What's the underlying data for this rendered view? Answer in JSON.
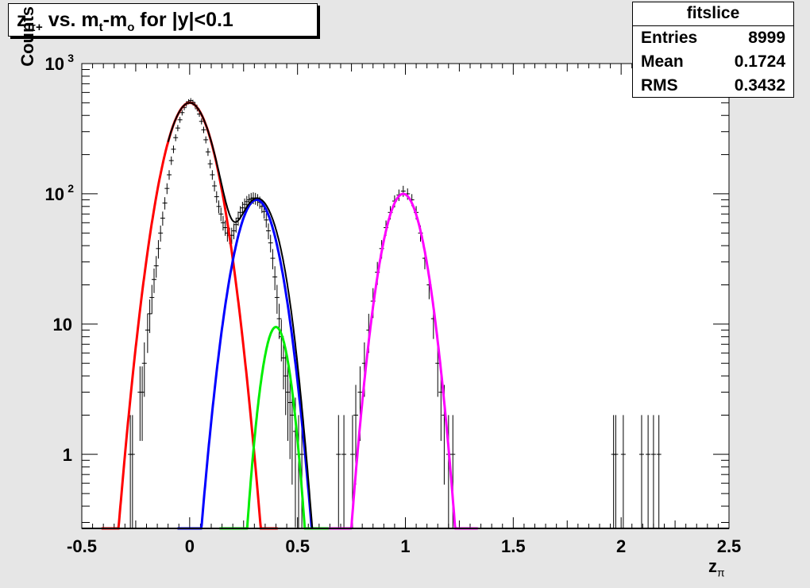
{
  "title": {
    "z": "z",
    "z_sub": "π+",
    "vs": " vs. m",
    "m_sub": "t",
    "dash": "-m",
    "o_sub": "o",
    "rest": " for |y|<0.1"
  },
  "stats": {
    "name": "fitslice",
    "rows": [
      {
        "label": "Entries",
        "value": "8999"
      },
      {
        "label": "Mean",
        "value": "0.1724"
      },
      {
        "label": "RMS",
        "value": "0.3432"
      }
    ]
  },
  "chart_data": {
    "type": "scatter",
    "title": "zπ+ vs. mt-mo for |y|<0.1",
    "xlabel": "zπ",
    "ylabel": "Counts",
    "xlim": [
      -0.5,
      2.5
    ],
    "ylim": [
      0.27,
      1000
    ],
    "yscale": "log",
    "x_ticks": [
      {
        "v": -0.5,
        "label": "-0.5"
      },
      {
        "v": 0,
        "label": "0"
      },
      {
        "v": 0.5,
        "label": "0.5"
      },
      {
        "v": 1,
        "label": "1"
      },
      {
        "v": 1.5,
        "label": "1.5"
      },
      {
        "v": 2,
        "label": "2"
      },
      {
        "v": 2.5,
        "label": "2.5"
      }
    ],
    "y_ticks": [
      {
        "v": 1,
        "label": "1"
      },
      {
        "v": 10,
        "label": "10"
      },
      {
        "v": 100,
        "label": "10",
        "sup": "2"
      },
      {
        "v": 1000,
        "label": "10",
        "sup": "3"
      }
    ],
    "series": [
      {
        "color": "#ff0000",
        "kind": "gauss",
        "amp": 500,
        "mean": 0.0,
        "sigma": 0.085
      },
      {
        "color": "#0000ff",
        "kind": "gauss",
        "amp": 90,
        "mean": 0.31,
        "sigma": 0.075
      },
      {
        "color": "#00ee00",
        "kind": "gauss",
        "amp": 9.5,
        "mean": 0.4,
        "sigma": 0.05
      },
      {
        "color": "#ff00ff",
        "kind": "gauss",
        "amp": 100,
        "mean": 0.99,
        "sigma": 0.07
      },
      {
        "color": "#000000",
        "kind": "sum",
        "components": [
          0,
          1,
          2
        ],
        "range": [
          -0.1,
          0.58
        ]
      }
    ],
    "points": [
      {
        "x": -0.275,
        "y": 1
      },
      {
        "x": -0.265,
        "y": 1
      },
      {
        "x": -0.23,
        "y": 3
      },
      {
        "x": -0.22,
        "y": 3
      },
      {
        "x": -0.21,
        "y": 5
      },
      {
        "x": -0.195,
        "y": 9
      },
      {
        "x": -0.185,
        "y": 12
      },
      {
        "x": -0.175,
        "y": 16
      },
      {
        "x": -0.165,
        "y": 22
      },
      {
        "x": -0.155,
        "y": 28
      },
      {
        "x": -0.145,
        "y": 38
      },
      {
        "x": -0.135,
        "y": 50
      },
      {
        "x": -0.125,
        "y": 65
      },
      {
        "x": -0.115,
        "y": 85
      },
      {
        "x": -0.105,
        "y": 110
      },
      {
        "x": -0.095,
        "y": 140
      },
      {
        "x": -0.085,
        "y": 180
      },
      {
        "x": -0.075,
        "y": 220
      },
      {
        "x": -0.065,
        "y": 270
      },
      {
        "x": -0.055,
        "y": 320
      },
      {
        "x": -0.045,
        "y": 370
      },
      {
        "x": -0.035,
        "y": 420
      },
      {
        "x": -0.025,
        "y": 460
      },
      {
        "x": -0.015,
        "y": 490
      },
      {
        "x": -0.005,
        "y": 510
      },
      {
        "x": 0.005,
        "y": 520
      },
      {
        "x": 0.015,
        "y": 505
      },
      {
        "x": 0.025,
        "y": 480
      },
      {
        "x": 0.035,
        "y": 450
      },
      {
        "x": 0.045,
        "y": 410
      },
      {
        "x": 0.055,
        "y": 360
      },
      {
        "x": 0.065,
        "y": 310
      },
      {
        "x": 0.075,
        "y": 260
      },
      {
        "x": 0.085,
        "y": 210
      },
      {
        "x": 0.095,
        "y": 170
      },
      {
        "x": 0.105,
        "y": 140
      },
      {
        "x": 0.115,
        "y": 115
      },
      {
        "x": 0.125,
        "y": 95
      },
      {
        "x": 0.135,
        "y": 80
      },
      {
        "x": 0.145,
        "y": 70
      },
      {
        "x": 0.155,
        "y": 60
      },
      {
        "x": 0.165,
        "y": 55
      },
      {
        "x": 0.175,
        "y": 50
      },
      {
        "x": 0.185,
        "y": 48
      },
      {
        "x": 0.195,
        "y": 48
      },
      {
        "x": 0.205,
        "y": 52
      },
      {
        "x": 0.215,
        "y": 58
      },
      {
        "x": 0.225,
        "y": 65
      },
      {
        "x": 0.235,
        "y": 72
      },
      {
        "x": 0.245,
        "y": 78
      },
      {
        "x": 0.255,
        "y": 83
      },
      {
        "x": 0.265,
        "y": 87
      },
      {
        "x": 0.275,
        "y": 90
      },
      {
        "x": 0.285,
        "y": 92
      },
      {
        "x": 0.295,
        "y": 93
      },
      {
        "x": 0.305,
        "y": 92
      },
      {
        "x": 0.315,
        "y": 90
      },
      {
        "x": 0.325,
        "y": 86
      },
      {
        "x": 0.335,
        "y": 80
      },
      {
        "x": 0.345,
        "y": 73
      },
      {
        "x": 0.355,
        "y": 63
      },
      {
        "x": 0.365,
        "y": 52
      },
      {
        "x": 0.375,
        "y": 42
      },
      {
        "x": 0.385,
        "y": 32
      },
      {
        "x": 0.395,
        "y": 23
      },
      {
        "x": 0.405,
        "y": 16
      },
      {
        "x": 0.415,
        "y": 11
      },
      {
        "x": 0.425,
        "y": 8
      },
      {
        "x": 0.435,
        "y": 5.5
      },
      {
        "x": 0.445,
        "y": 4
      },
      {
        "x": 0.455,
        "y": 3
      },
      {
        "x": 0.465,
        "y": 2.5
      },
      {
        "x": 0.475,
        "y": 2
      },
      {
        "x": 0.49,
        "y": 1.5
      },
      {
        "x": 0.505,
        "y": 1
      },
      {
        "x": 0.52,
        "y": 1
      },
      {
        "x": 0.69,
        "y": 1
      },
      {
        "x": 0.715,
        "y": 1
      },
      {
        "x": 0.755,
        "y": 1
      },
      {
        "x": 0.77,
        "y": 2
      },
      {
        "x": 0.79,
        "y": 3
      },
      {
        "x": 0.81,
        "y": 5
      },
      {
        "x": 0.83,
        "y": 9
      },
      {
        "x": 0.85,
        "y": 15
      },
      {
        "x": 0.87,
        "y": 25
      },
      {
        "x": 0.89,
        "y": 38
      },
      {
        "x": 0.91,
        "y": 55
      },
      {
        "x": 0.93,
        "y": 72
      },
      {
        "x": 0.95,
        "y": 88
      },
      {
        "x": 0.97,
        "y": 98
      },
      {
        "x": 0.99,
        "y": 105
      },
      {
        "x": 1.01,
        "y": 100
      },
      {
        "x": 1.03,
        "y": 90
      },
      {
        "x": 1.05,
        "y": 72
      },
      {
        "x": 1.07,
        "y": 50
      },
      {
        "x": 1.09,
        "y": 32
      },
      {
        "x": 1.11,
        "y": 20
      },
      {
        "x": 1.13,
        "y": 11
      },
      {
        "x": 1.15,
        "y": 5
      },
      {
        "x": 1.165,
        "y": 3
      },
      {
        "x": 1.18,
        "y": 2
      },
      {
        "x": 1.2,
        "y": 1
      },
      {
        "x": 1.22,
        "y": 1
      },
      {
        "x": 1.965,
        "y": 1
      },
      {
        "x": 1.975,
        "y": 1
      },
      {
        "x": 2.01,
        "y": 1
      },
      {
        "x": 2.095,
        "y": 1
      },
      {
        "x": 2.125,
        "y": 1
      },
      {
        "x": 2.15,
        "y": 1
      },
      {
        "x": 2.175,
        "y": 1
      }
    ]
  }
}
